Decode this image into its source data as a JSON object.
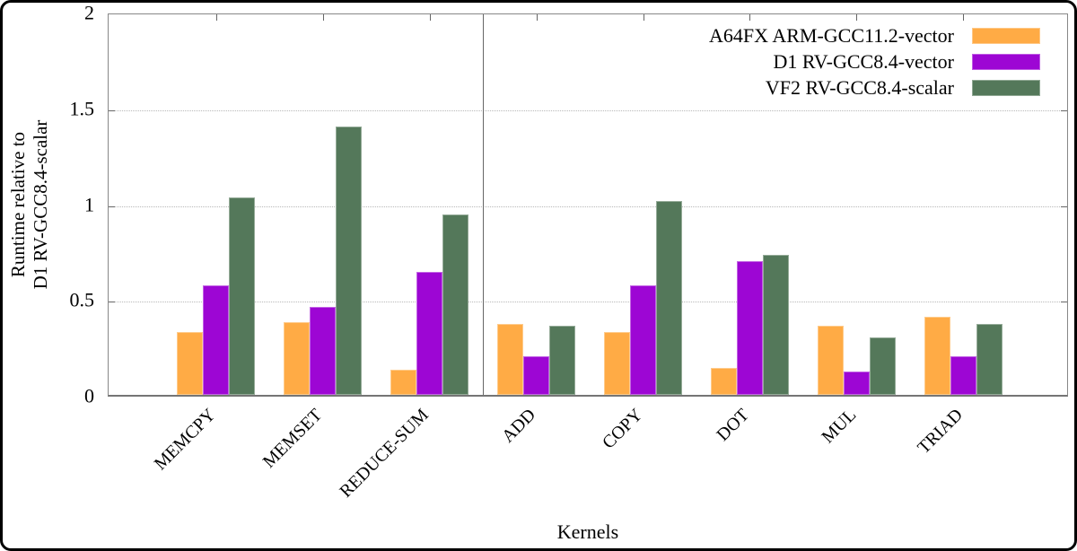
{
  "chart_data": {
    "type": "bar",
    "title": "",
    "xlabel": "Kernels",
    "ylabel_line1": "Runtime relative to",
    "ylabel_line2": "D1 RV-GCC8.4-scalar",
    "ylim": [
      0,
      2
    ],
    "yticks": [
      0,
      0.5,
      1,
      1.5,
      2
    ],
    "ytick_labels": [
      "0",
      "0.5",
      "1",
      "1.5",
      "2"
    ],
    "grid": "horizontal dotted at 0.5, 1.0, 1.5",
    "legend_position": "top-right inside plot",
    "categories": [
      "MEMCPY",
      "MEMSET",
      "REDUCE-SUM",
      "ADD",
      "COPY",
      "DOT",
      "MUL",
      "TRIAD"
    ],
    "group_separator_after": "REDUCE-SUM",
    "series": [
      {
        "name": "A64FX ARM-GCC11.2-vector",
        "color": "#FFAB45",
        "values": [
          0.33,
          0.38,
          0.13,
          0.37,
          0.33,
          0.14,
          0.36,
          0.41
        ]
      },
      {
        "name": "D1 RV-GCC8.4-vector",
        "color": "#9D06D4",
        "values": [
          0.57,
          0.46,
          0.64,
          0.2,
          0.57,
          0.7,
          0.12,
          0.2
        ]
      },
      {
        "name": "VF2 RV-GCC8.4-scalar",
        "color": "#54785A",
        "values": [
          1.03,
          1.4,
          0.94,
          0.36,
          1.01,
          0.73,
          0.3,
          0.37
        ]
      }
    ]
  }
}
